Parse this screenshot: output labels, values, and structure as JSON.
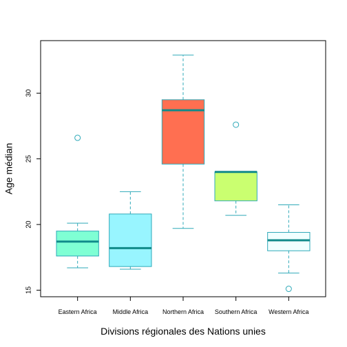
{
  "chart_data": {
    "type": "box",
    "xlabel": "Divisions régionales des Nations unies",
    "ylabel": "Age médian",
    "ylim": [
      14.5,
      34.0
    ],
    "yticks": [
      15,
      20,
      25,
      30
    ],
    "ytick_labels": [
      "15",
      "20",
      "25",
      "30"
    ],
    "grid": false,
    "whisker_color": "#2ea9b8",
    "median_color": "#108a8a",
    "box_border_color": "#2ea9b8",
    "categories": [
      "Eastern Africa",
      "Middle Africa",
      "Northern Africa",
      "Southern Africa",
      "Western Africa"
    ],
    "boxes": [
      {
        "category": "Eastern Africa",
        "whisker_low": 16.7,
        "q1": 17.6,
        "median": 18.7,
        "q3": 19.5,
        "whisker_high": 20.1,
        "outliers": [
          26.6
        ],
        "fill": "#7fffd4"
      },
      {
        "category": "Middle Africa",
        "whisker_low": 16.6,
        "q1": 16.8,
        "median": 18.2,
        "q3": 20.8,
        "whisker_high": 22.5,
        "outliers": [],
        "fill": "#98f5ff"
      },
      {
        "category": "Northern Africa",
        "whisker_low": 19.7,
        "q1": 24.6,
        "median": 28.7,
        "q3": 29.5,
        "whisker_high": 32.9,
        "outliers": [],
        "fill": "#ff6f51"
      },
      {
        "category": "Southern Africa",
        "whisker_low": 20.7,
        "q1": 21.8,
        "median": 24.0,
        "q3": 24.0,
        "whisker_high": 24.0,
        "outliers": [
          27.6
        ],
        "fill": "#caff70"
      },
      {
        "category": "Western Africa",
        "whisker_low": 16.3,
        "q1": 18.0,
        "median": 18.8,
        "q3": 19.4,
        "whisker_high": 21.5,
        "outliers": [
          15.1
        ],
        "fill": "#f0ffff"
      }
    ]
  }
}
